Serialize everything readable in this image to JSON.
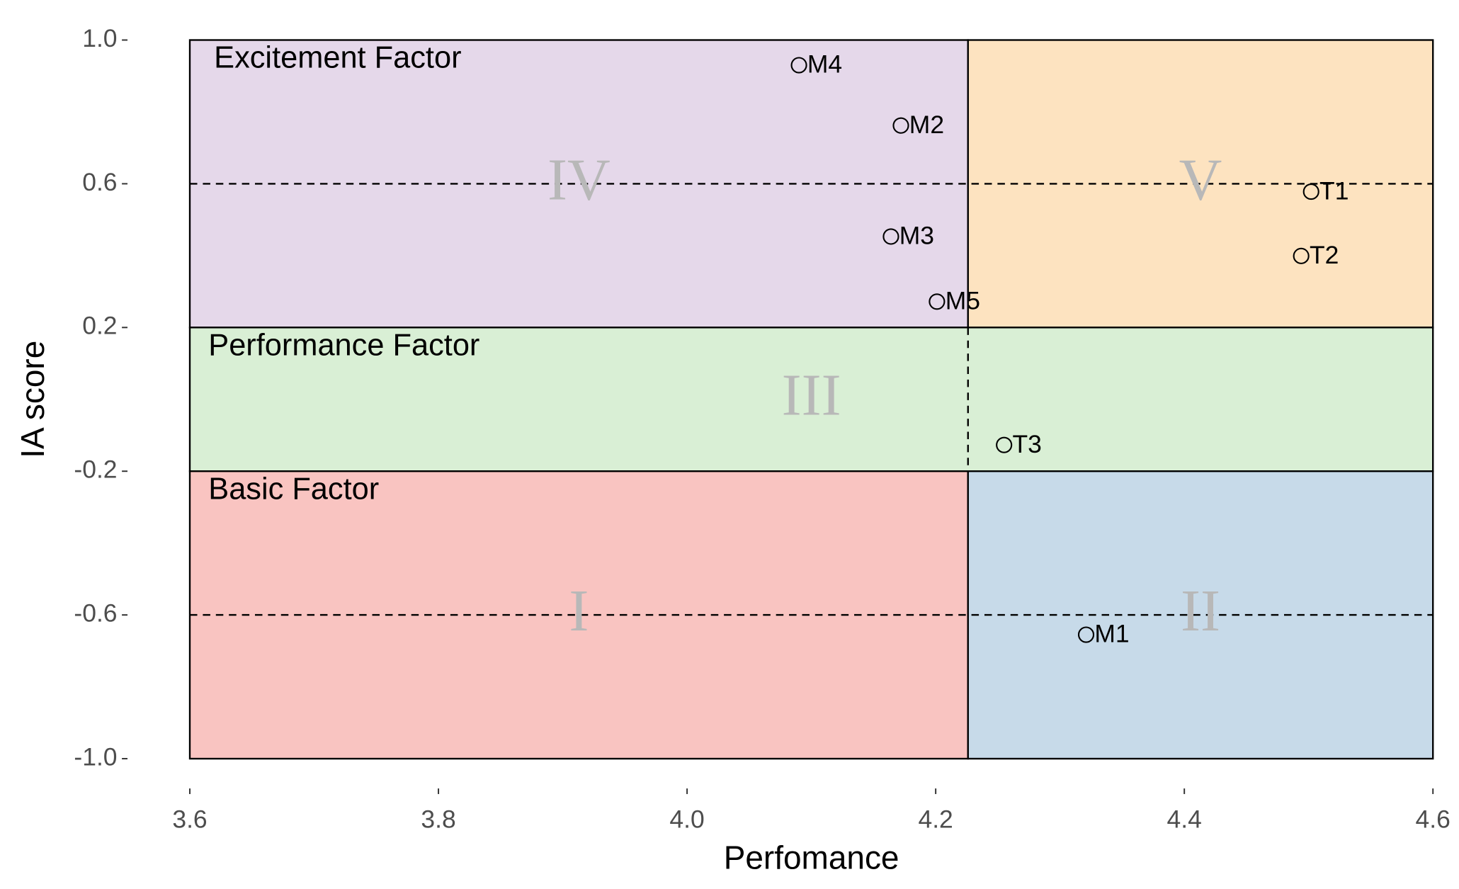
{
  "chart_data": {
    "type": "scatter",
    "x_label": "Perfomance",
    "y_label": "IA score",
    "xlim": [
      3.6,
      4.6
    ],
    "ylim": [
      -1,
      1
    ],
    "xticks": [
      3.6,
      3.8,
      {
        "value": 4,
        "label": "4.0"
      },
      4.2,
      4.4,
      4.6
    ],
    "yticks": [
      {
        "value": 1,
        "label": "1.0"
      },
      0.6,
      0.2,
      -0.2,
      -0.6,
      {
        "value": -1,
        "label": "-1.0"
      }
    ],
    "bands": [
      {
        "name": "Excitement Factor",
        "ylim": [
          0.2,
          1
        ]
      },
      {
        "name": "Performance Factor",
        "ylim": [
          -0.2,
          0.2
        ]
      },
      {
        "name": "Basic Factor",
        "ylim": [
          -1,
          -0.2
        ]
      }
    ],
    "regions": [
      {
        "label": "IV",
        "xlim": [
          3.6,
          4.226
        ],
        "ylim": [
          0.2,
          1
        ],
        "color": "#e5d8ea"
      },
      {
        "label": "V",
        "xlim": [
          4.226,
          4.6
        ],
        "ylim": [
          0.2,
          1
        ],
        "color": "#fde3c0"
      },
      {
        "label": "III",
        "xlim": [
          3.6,
          4.6
        ],
        "ylim": [
          -0.2,
          0.2
        ],
        "color": "#d9efd5"
      },
      {
        "label": "I",
        "xlim": [
          3.6,
          4.226
        ],
        "ylim": [
          -1,
          -0.2
        ],
        "color": "#f9c4c1"
      },
      {
        "label": "II",
        "xlim": [
          4.226,
          4.6
        ],
        "ylim": [
          -1,
          -0.2
        ],
        "color": "#c7dae9"
      }
    ],
    "reference_lines": {
      "y": [
        0.6,
        -0.6
      ],
      "x": 4.226
    },
    "points": {
      "labels": [
        "M4",
        "M2",
        "M3",
        "M5",
        "T1",
        "T2",
        "T3",
        "M1"
      ],
      "x": [
        4.09,
        4.172,
        4.164,
        4.201,
        4.502,
        4.494,
        4.255,
        4.321
      ],
      "y": [
        0.93,
        0.762,
        0.453,
        0.272,
        0.578,
        0.399,
        -0.127,
        -0.655
      ]
    }
  }
}
